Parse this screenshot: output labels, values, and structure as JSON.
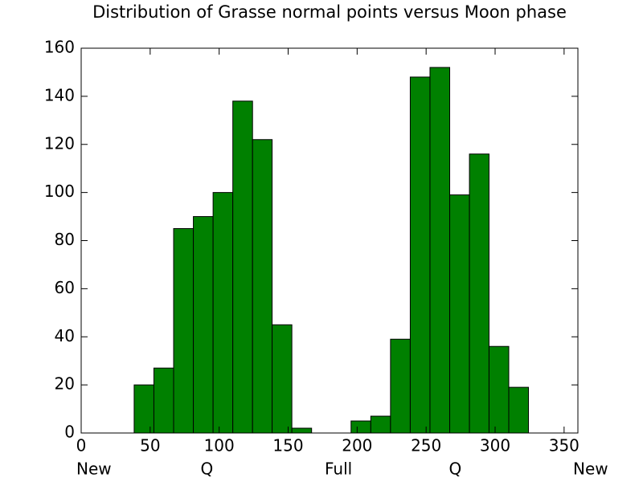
{
  "chart_data": {
    "type": "histogram",
    "title": "Distribution of Grasse normal points versus Moon phase",
    "bins": [
      38.4,
      52.7,
      67.0,
      81.3,
      95.6,
      109.9,
      124.2,
      138.4,
      152.7,
      167.0,
      181.3,
      195.6,
      209.9,
      224.2,
      238.5,
      252.8,
      267.1,
      281.4,
      295.6,
      309.9,
      324.2
    ],
    "values": [
      20,
      27,
      85,
      90,
      100,
      138,
      122,
      45,
      2,
      0,
      0,
      5,
      7,
      39,
      148,
      152,
      99,
      116,
      36,
      19
    ],
    "color": "#008000",
    "xlim": [
      0,
      360
    ],
    "xticks": [
      0,
      50,
      100,
      150,
      200,
      250,
      300,
      350
    ],
    "xticks2": [
      {
        "value": 0,
        "label": "New"
      },
      {
        "value": 90,
        "label": "Q"
      },
      {
        "value": 180,
        "label": "Full"
      },
      {
        "value": 270,
        "label": "Q"
      },
      {
        "value": 360,
        "label": "New"
      }
    ],
    "ylim": [
      0,
      160
    ],
    "yticks": [
      0,
      20,
      40,
      60,
      80,
      100,
      120,
      140,
      160
    ]
  }
}
